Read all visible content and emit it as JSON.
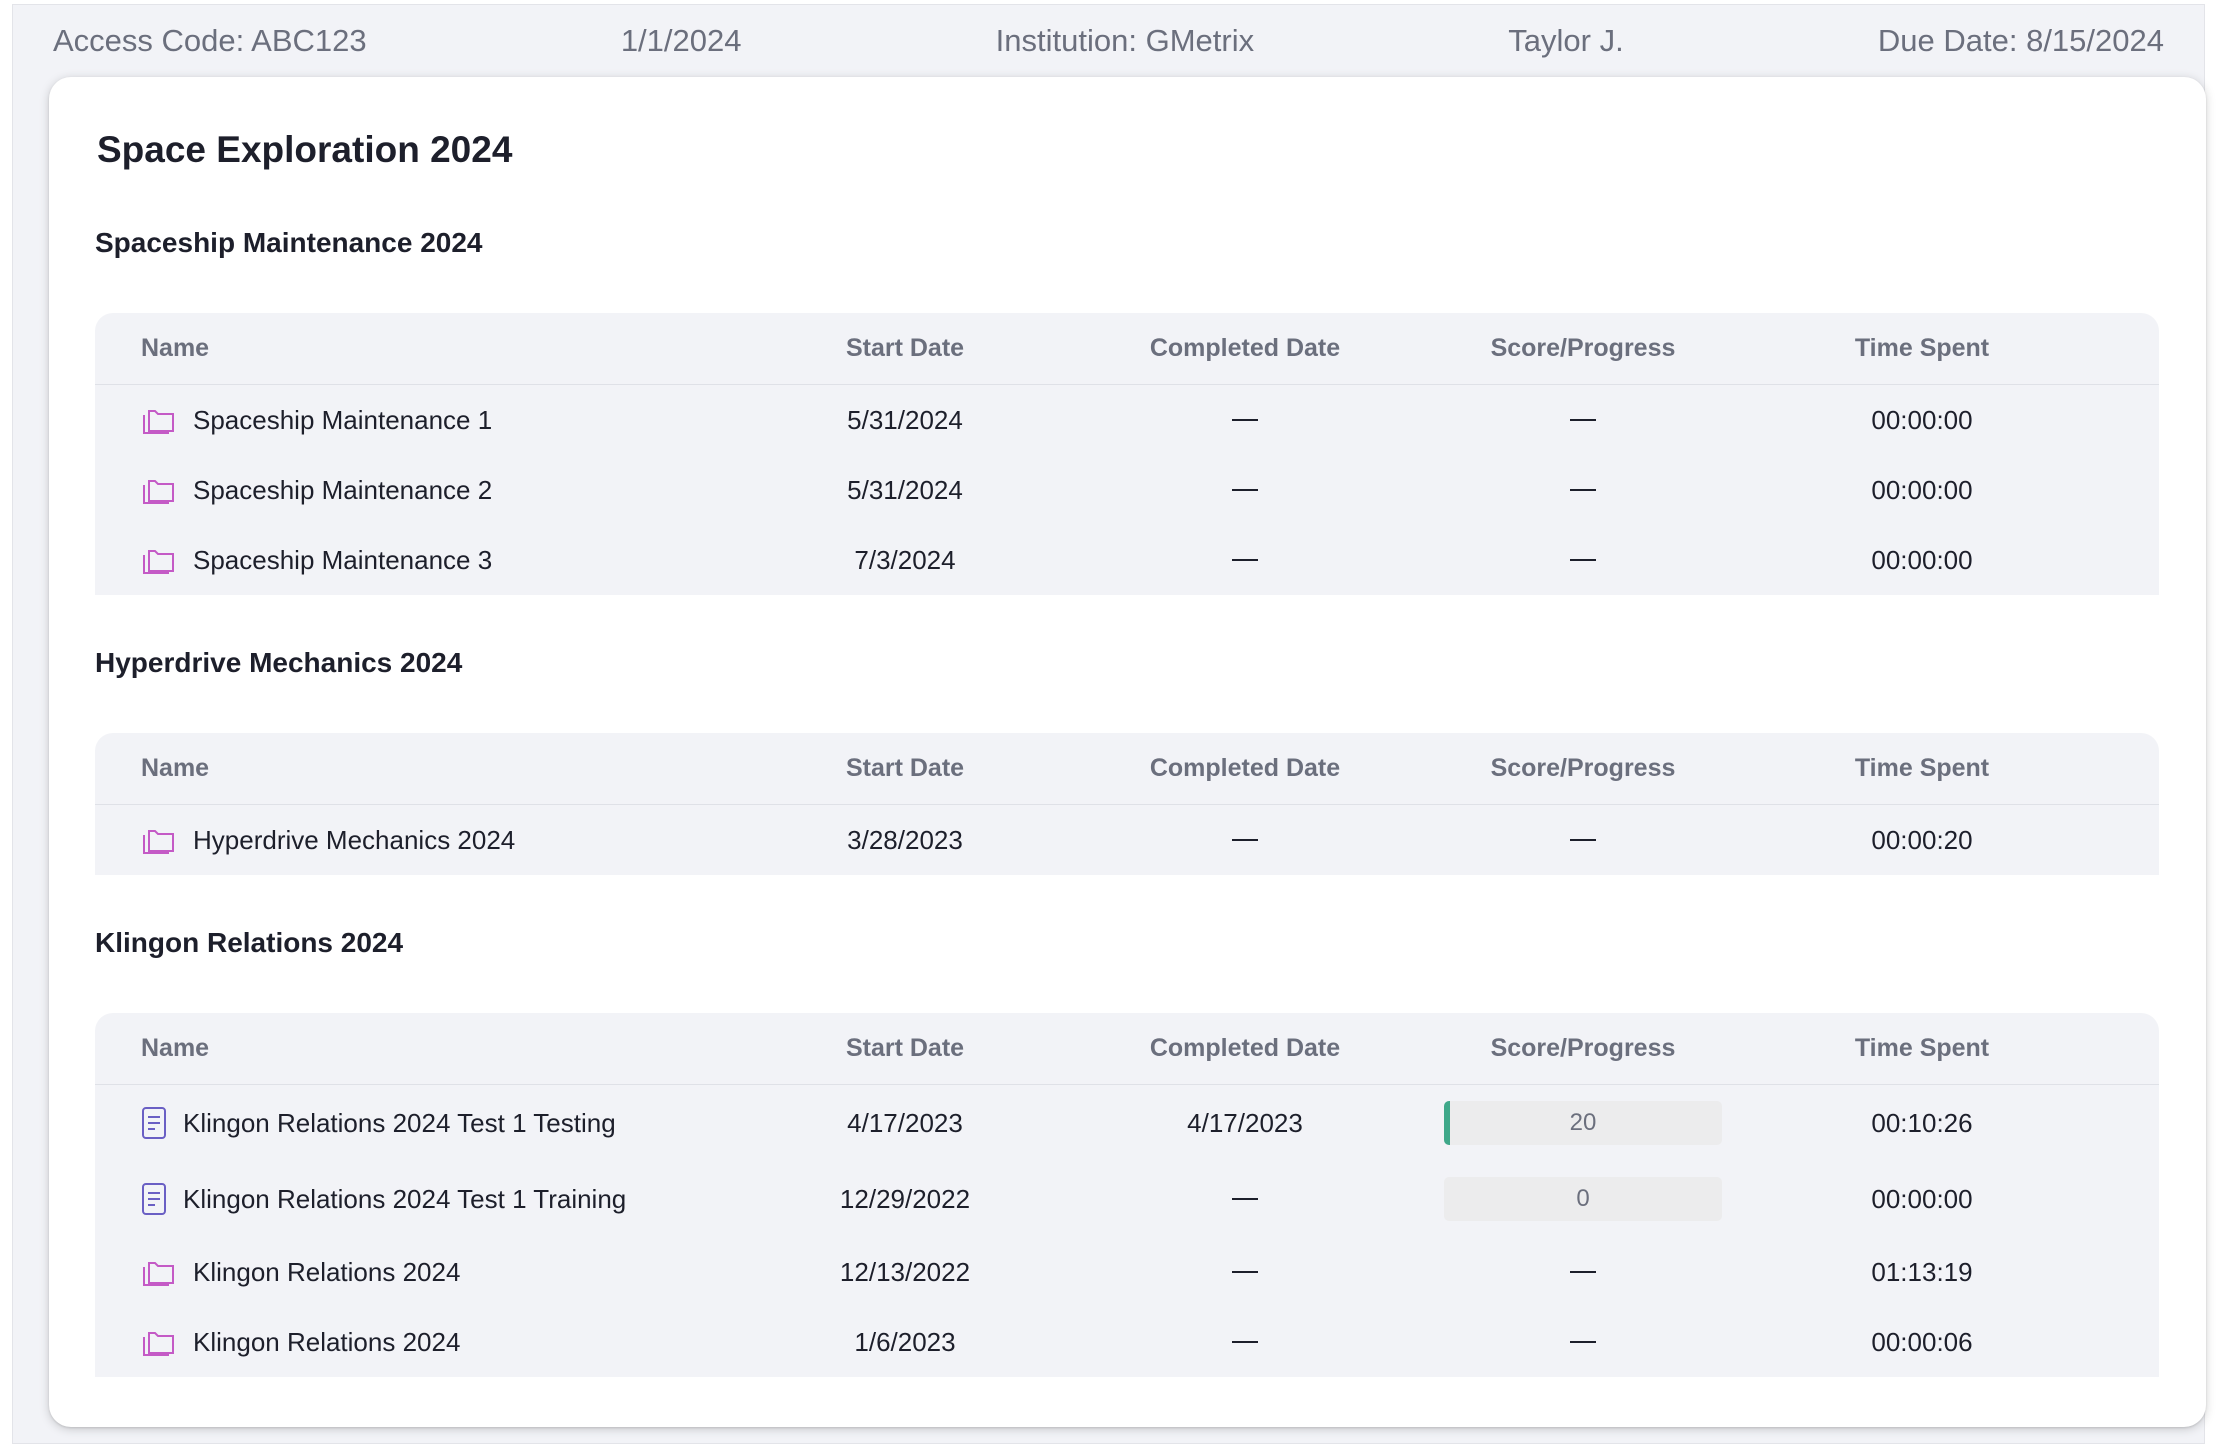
{
  "header": {
    "access_code": "Access Code: ABC123",
    "date": "1/1/2024",
    "institution": "Institution: GMetrix",
    "user": "Taylor J.",
    "due_date": "Due Date: 8/15/2024"
  },
  "page_title": "Space Exploration 2024",
  "columns": {
    "name": "Name",
    "start_date": "Start Date",
    "completed_date": "Completed Date",
    "score": "Score/Progress",
    "time": "Time Spent"
  },
  "sections": [
    {
      "title": "Spaceship Maintenance 2024",
      "rows": [
        {
          "icon": "folder-icon",
          "name": "Spaceship Maintenance 1",
          "start": "5/31/2024",
          "completed": null,
          "score": null,
          "time": "00:00:00"
        },
        {
          "icon": "folder-icon",
          "name": "Spaceship Maintenance 2",
          "start": "5/31/2024",
          "completed": null,
          "score": null,
          "time": "00:00:00"
        },
        {
          "icon": "folder-icon",
          "name": "Spaceship Maintenance 3",
          "start": "7/3/2024",
          "completed": null,
          "score": null,
          "time": "00:00:00"
        }
      ]
    },
    {
      "title": "Hyperdrive Mechanics 2024",
      "rows": [
        {
          "icon": "folder-icon",
          "name": "Hyperdrive Mechanics 2024",
          "start": "3/28/2023",
          "completed": null,
          "score": null,
          "time": "00:00:20"
        }
      ]
    },
    {
      "title": "Klingon Relations 2024",
      "rows": [
        {
          "icon": "document-icon",
          "name": "Klingon Relations 2024 Test 1 Testing",
          "start": "4/17/2023",
          "completed": "4/17/2023",
          "score": "20",
          "progress_fraction": 0.02,
          "time": "00:10:26"
        },
        {
          "icon": "document-icon",
          "name": "Klingon Relations 2024 Test 1 Training",
          "start": "12/29/2022",
          "completed": null,
          "score": "0",
          "progress_fraction": 0,
          "time": "00:00:00"
        },
        {
          "icon": "folder-icon",
          "name": "Klingon Relations 2024",
          "start": "12/13/2022",
          "completed": null,
          "score": null,
          "time": "01:13:19"
        },
        {
          "icon": "folder-icon",
          "name": "Klingon Relations 2024",
          "start": "1/6/2023",
          "completed": null,
          "score": null,
          "time": "00:00:06"
        }
      ]
    }
  ],
  "colors": {
    "folder_icon": "#c45ac6",
    "document_icon": "#6a5fc4",
    "progress_fill": "#3fa88a"
  }
}
